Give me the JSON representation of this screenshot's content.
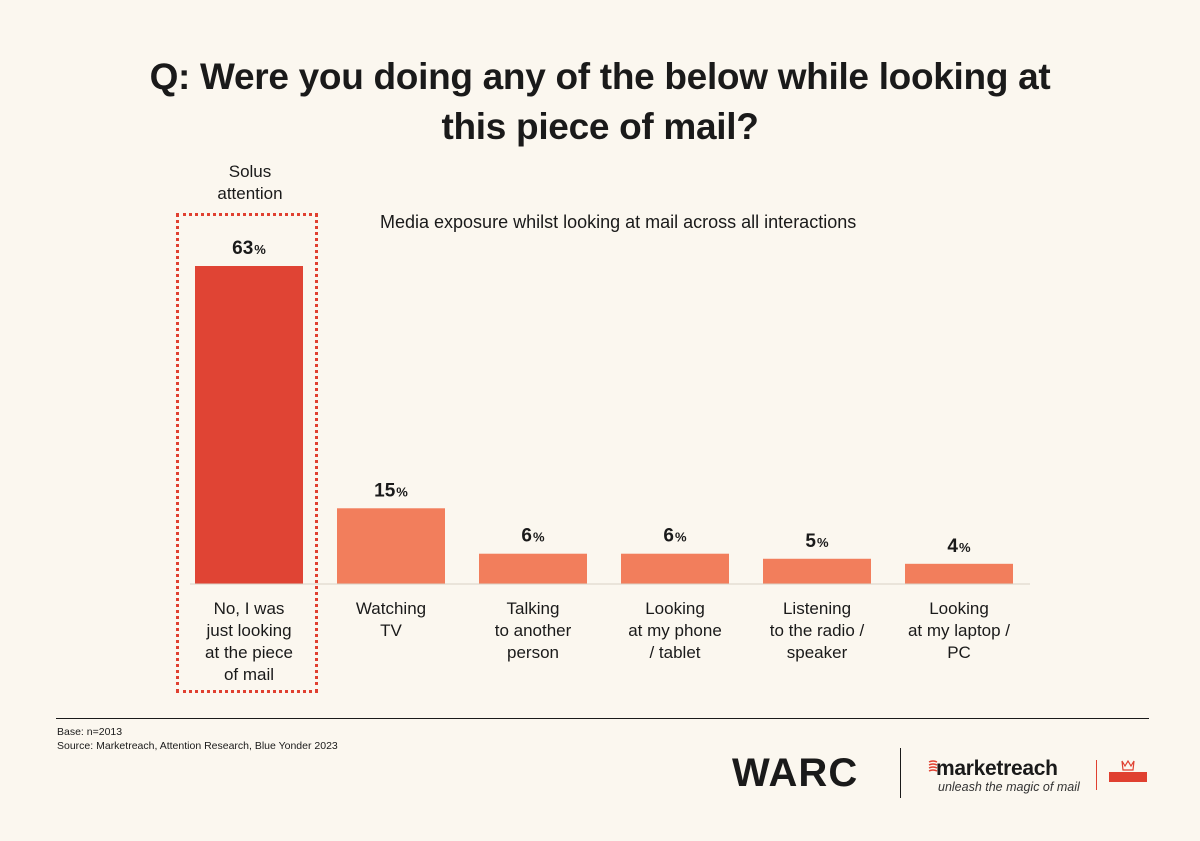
{
  "title_line1": "Q: Were you doing any of the below while looking at",
  "title_line2": "this piece of mail?",
  "solus_line1": "Solus",
  "solus_line2": "attention",
  "footer": {
    "base": "Base: n=2013",
    "source": "Source: Marketreach, Attention Research, Blue Yonder 2023",
    "warc_logo": "WARC",
    "marketreach_logo": "marketreach",
    "marketreach_tagline": "unleash the magic of mail",
    "royal_mail_logo": "Royal Mail"
  },
  "colors": {
    "highlight": "#e04434",
    "bar": "#f27e5c",
    "background": "#fbf7ef"
  },
  "chart_data": {
    "type": "bar",
    "title": "Media exposure whilst looking at mail across all interactions",
    "categories": [
      [
        "No, I was",
        "just looking",
        "at the piece",
        "of mail"
      ],
      [
        "Watching",
        "TV"
      ],
      [
        "Talking",
        "to another",
        "person"
      ],
      [
        "Looking",
        "at my phone",
        "/ tablet"
      ],
      [
        "Listening",
        "to the radio /",
        "speaker"
      ],
      [
        "Looking",
        "at my laptop /",
        "PC"
      ]
    ],
    "values": [
      63,
      15,
      6,
      6,
      5,
      4
    ],
    "value_suffix": "%",
    "highlighted_index": 0,
    "ylim": [
      0,
      63
    ],
    "grid": false,
    "legend": "none"
  }
}
